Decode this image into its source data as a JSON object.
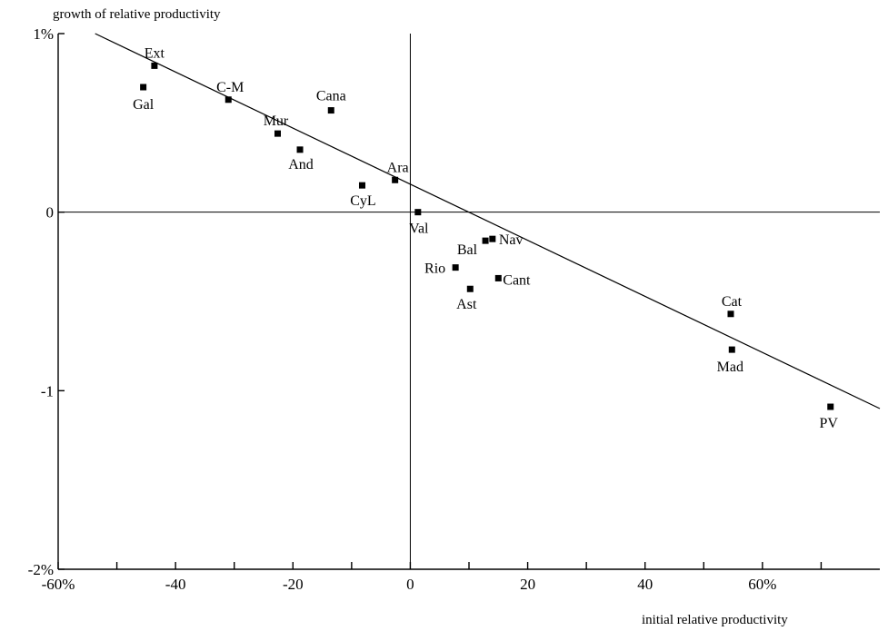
{
  "chart_data": {
    "type": "scatter",
    "title": "",
    "ylabel": "growth of relative productivity",
    "xlabel": "initial relative productivity",
    "xlim": [
      -60,
      80
    ],
    "ylim": [
      -2,
      1
    ],
    "x_ticks": [
      {
        "value": -60,
        "label": "-60%"
      },
      {
        "value": -40,
        "label": "-40"
      },
      {
        "value": -20,
        "label": "-20"
      },
      {
        "value": 0,
        "label": "0"
      },
      {
        "value": 20,
        "label": "20"
      },
      {
        "value": 40,
        "label": "40"
      },
      {
        "value": 60,
        "label": "60%"
      }
    ],
    "y_ticks": [
      {
        "value": 1,
        "label": "1%"
      },
      {
        "value": 0,
        "label": "0"
      },
      {
        "value": -1,
        "label": "-1"
      },
      {
        "value": -2,
        "label": "-2%"
      }
    ],
    "reference_lines": {
      "x": 0,
      "y": 0
    },
    "grid": false,
    "points": [
      {
        "label": "Ext",
        "x": -43.6,
        "y": 0.82
      },
      {
        "label": "Gal",
        "x": -45.5,
        "y": 0.7
      },
      {
        "label": "C-M",
        "x": -31.0,
        "y": 0.63
      },
      {
        "label": "Cana",
        "x": -13.5,
        "y": 0.57
      },
      {
        "label": "Mur",
        "x": -22.6,
        "y": 0.44
      },
      {
        "label": "And",
        "x": -18.8,
        "y": 0.35
      },
      {
        "label": "Ara",
        "x": -2.6,
        "y": 0.18
      },
      {
        "label": "CyL",
        "x": -8.2,
        "y": 0.15
      },
      {
        "label": "Val",
        "x": 1.3,
        "y": 0.0
      },
      {
        "label": "Nav",
        "x": 14.0,
        "y": -0.15
      },
      {
        "label": "Bal",
        "x": 12.8,
        "y": -0.16
      },
      {
        "label": "Rio",
        "x": 7.7,
        "y": -0.31
      },
      {
        "label": "Cant",
        "x": 15.0,
        "y": -0.37
      },
      {
        "label": "Ast",
        "x": 10.2,
        "y": -0.43
      },
      {
        "label": "Cat",
        "x": 54.6,
        "y": -0.57
      },
      {
        "label": "Mad",
        "x": 54.8,
        "y": -0.77
      },
      {
        "label": "PV",
        "x": 71.6,
        "y": -1.09
      }
    ],
    "fit_line": {
      "x": [
        -53.7,
        80
      ],
      "y": [
        1.0,
        -1.1
      ]
    }
  }
}
